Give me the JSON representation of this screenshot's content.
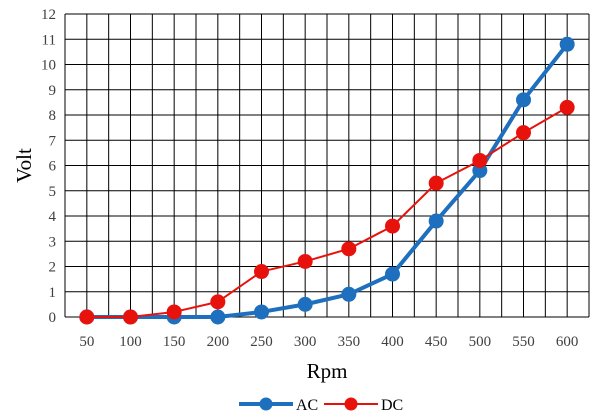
{
  "chart_data": {
    "type": "line",
    "xlabel": "Rpm",
    "ylabel": "Volt",
    "categories": [
      "50",
      "100",
      "150",
      "200",
      "250",
      "300",
      "350",
      "400",
      "450",
      "500",
      "550",
      "600"
    ],
    "ylim": [
      0,
      12
    ],
    "ystep": 1,
    "grid": true,
    "legend_position": "bottom",
    "series": [
      {
        "name": "AC",
        "color": "#1f6fbf",
        "values": [
          0,
          0,
          0,
          0,
          0.2,
          0.5,
          0.9,
          1.7,
          3.8,
          5.8,
          8.6,
          10.8
        ]
      },
      {
        "name": "DC",
        "color": "#e8120c",
        "values": [
          0,
          0,
          0.2,
          0.6,
          1.8,
          2.2,
          2.7,
          3.6,
          5.3,
          6.2,
          7.3,
          8.3
        ]
      }
    ]
  }
}
